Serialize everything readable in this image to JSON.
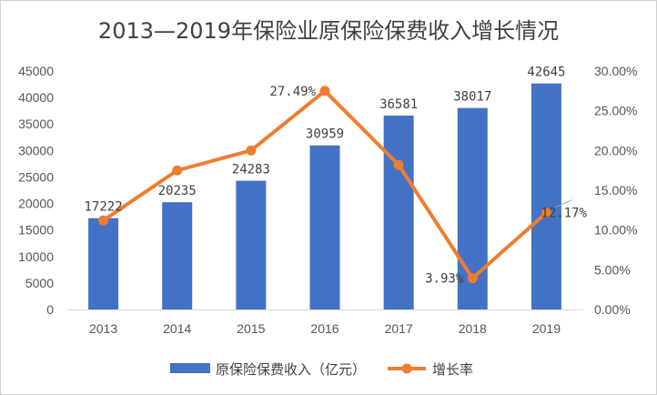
{
  "chart_data": {
    "type": "bar",
    "title": "2013—2019年保险业原保险保费收入增长情况",
    "categories": [
      "2013",
      "2014",
      "2015",
      "2016",
      "2017",
      "2018",
      "2019"
    ],
    "series": [
      {
        "name": "原保险保费收入（亿元）",
        "type": "bar",
        "axis": "left",
        "color": "#4472c4",
        "values": [
          17222,
          20235,
          24283,
          30959,
          36581,
          38017,
          42645
        ],
        "labels": [
          "17222",
          "20235",
          "24283",
          "30959",
          "36581",
          "38017",
          "42645"
        ]
      },
      {
        "name": "增长率",
        "type": "line",
        "axis": "right",
        "color": "#ed7d31",
        "values": [
          11.2,
          17.49,
          20.0,
          27.49,
          18.18,
          3.93,
          12.17
        ],
        "labels": [
          "",
          "",
          "",
          "27.49%",
          "",
          "3.93%",
          "12.17%"
        ]
      }
    ],
    "y_left": {
      "min": 0,
      "max": 45000,
      "ticks": [
        "0",
        "5000",
        "10000",
        "15000",
        "20000",
        "25000",
        "30000",
        "35000",
        "40000",
        "45000"
      ]
    },
    "y_right": {
      "min": 0,
      "max": 30,
      "ticks": [
        "0.00%",
        "5.00%",
        "10.00%",
        "15.00%",
        "20.00%",
        "25.00%",
        "30.00%"
      ]
    },
    "grid": false,
    "legend_position": "bottom"
  }
}
